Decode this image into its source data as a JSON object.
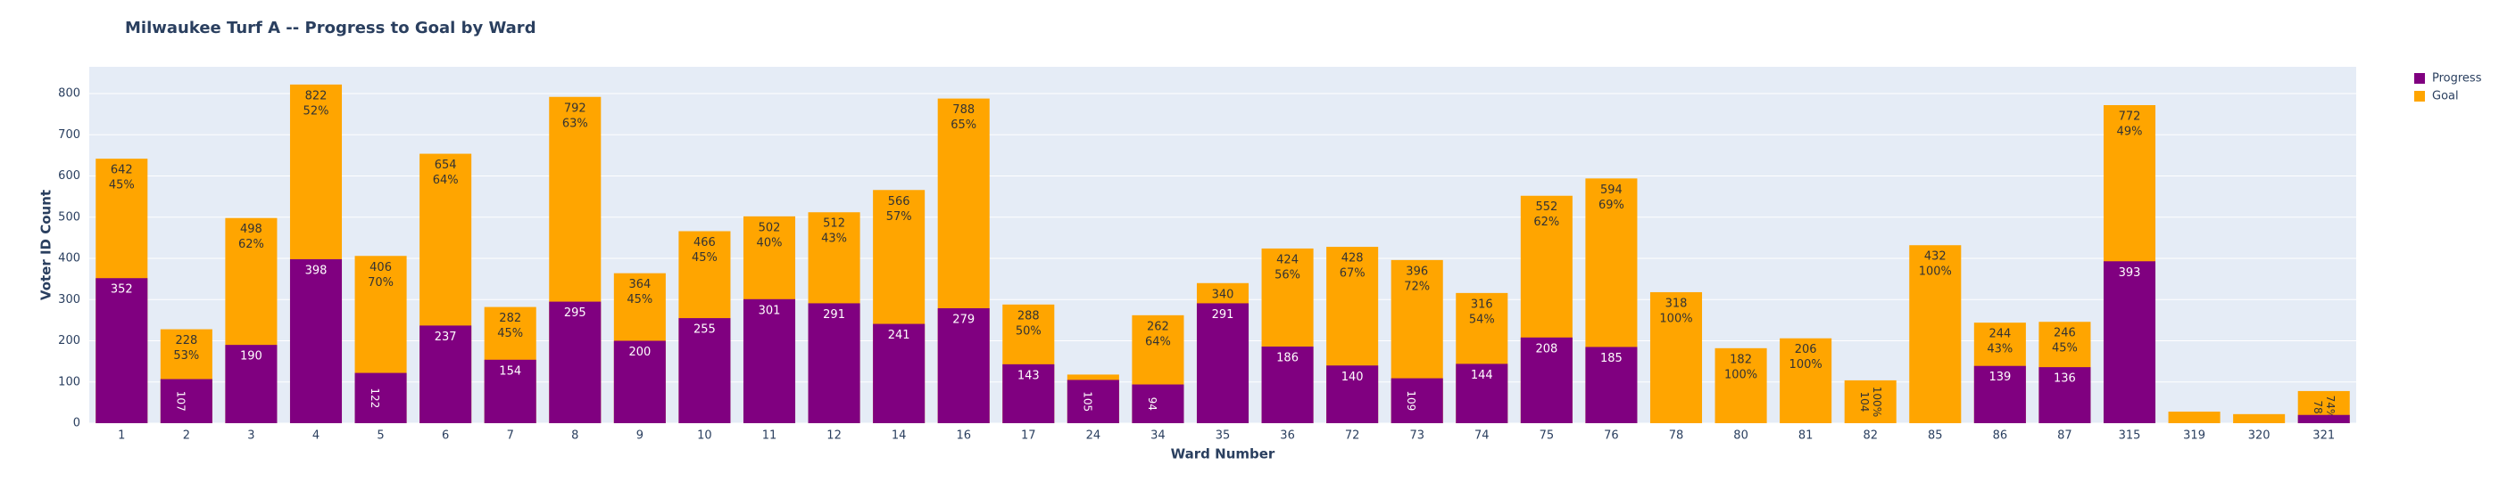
{
  "chart_data": {
    "type": "bar",
    "barmode": "overlay",
    "title": "Milwaukee Turf A -- Progress to Goal by Ward",
    "x_label": "Ward Number",
    "y_label": "Voter ID Count",
    "categories": [
      "1",
      "2",
      "3",
      "4",
      "5",
      "6",
      "7",
      "8",
      "9",
      "10",
      "11",
      "12",
      "14",
      "16",
      "17",
      "24",
      "34",
      "35",
      "36",
      "72",
      "73",
      "74",
      "75",
      "76",
      "78",
      "80",
      "81",
      "82",
      "85",
      "86",
      "87",
      "315",
      "319",
      "320",
      "321"
    ],
    "series": [
      {
        "name": "Goal",
        "color": "#FFA500",
        "values": [
          642,
          228,
          498,
          822,
          406,
          654,
          282,
          792,
          364,
          466,
          502,
          512,
          566,
          788,
          288,
          118,
          262,
          340,
          424,
          428,
          396,
          316,
          552,
          594,
          318,
          182,
          206,
          104,
          432,
          244,
          246,
          772,
          28,
          22,
          78
        ],
        "value_labels": [
          "642",
          "228",
          "498",
          "822",
          "406",
          "654",
          "282",
          "792",
          "364",
          "466",
          "502",
          "512",
          "566",
          "788",
          "288",
          null,
          "262",
          "340",
          "424",
          "428",
          "396",
          "316",
          "552",
          "594",
          "318",
          "182",
          "206",
          "104",
          "432",
          "244",
          "246",
          "772",
          null,
          null,
          "78"
        ],
        "percent_labels": [
          "45%",
          "53%",
          "62%",
          "52%",
          "70%",
          "64%",
          "45%",
          "63%",
          "45%",
          "45%",
          "40%",
          "43%",
          "57%",
          "65%",
          "50%",
          null,
          "64%",
          null,
          "56%",
          "67%",
          "72%",
          "54%",
          "62%",
          "69%",
          "100%",
          "100%",
          "100%",
          "100%",
          "100%",
          "43%",
          "45%",
          "49%",
          null,
          null,
          "74%"
        ]
      },
      {
        "name": "Progress",
        "color": "#800080",
        "values": [
          352,
          107,
          190,
          398,
          122,
          237,
          154,
          295,
          200,
          255,
          301,
          291,
          241,
          279,
          143,
          105,
          94,
          291,
          186,
          140,
          109,
          144,
          208,
          185,
          0,
          0,
          0,
          0,
          0,
          139,
          136,
          393,
          0,
          0,
          20
        ],
        "value_labels": [
          "352",
          "107",
          "190",
          "398",
          "122",
          "237",
          "154",
          "295",
          "200",
          "255",
          "301",
          "291",
          "241",
          "279",
          "143",
          "105",
          "94",
          "291",
          "186",
          "140",
          "109",
          "144",
          "208",
          "185",
          null,
          null,
          null,
          null,
          null,
          "139",
          "136",
          "393",
          null,
          null,
          null
        ]
      }
    ],
    "legend_order": [
      1,
      0
    ],
    "ylim": [
      0,
      865
    ],
    "yticks": [
      0,
      100,
      200,
      300,
      400,
      500,
      600,
      700,
      800
    ],
    "grid": true
  }
}
